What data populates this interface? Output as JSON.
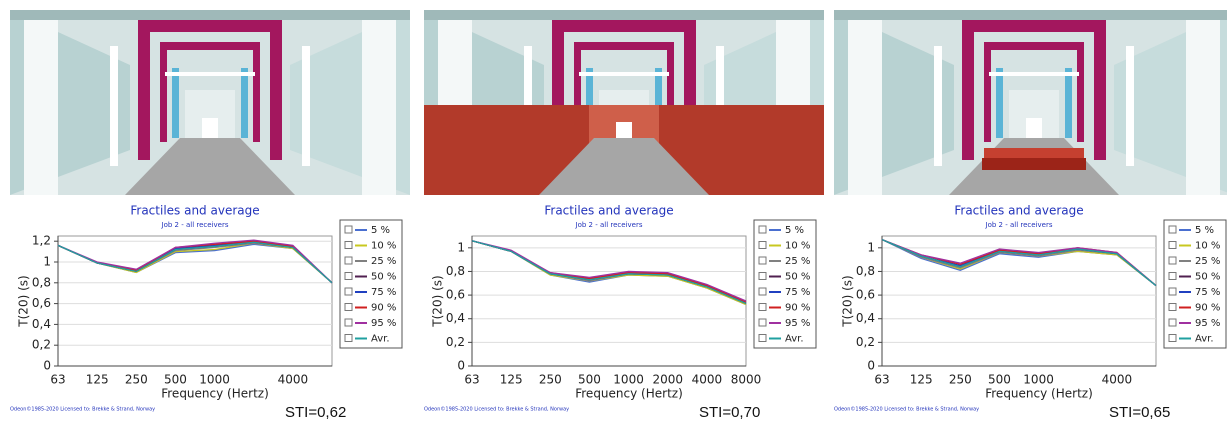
{
  "chart_data": [
    {
      "type": "line",
      "title": "Fractiles and average",
      "subtitle": "Job 2 - all receivers",
      "x_label": "Frequency (Hertz)",
      "y_label": "T(20) (s)",
      "annotation": "STI=0,62",
      "footer": "Odeon©1985-2020 Licensed to: Brekke & Strand, Norway",
      "categories": [
        "63",
        "125",
        "250",
        "500",
        "1000",
        null,
        "4000",
        null
      ],
      "ylim": [
        0,
        1.25
      ],
      "yticks": [
        0,
        {
          "value": 0.2,
          "label": "0,2"
        },
        {
          "value": 0.4,
          "label": "0,4"
        },
        {
          "value": 0.6,
          "label": "0,6"
        },
        {
          "value": 0.8,
          "label": "0,8"
        },
        1,
        {
          "value": 1.2,
          "label": "1,2"
        }
      ],
      "series": [
        {
          "name": "5 %",
          "color": "#4a6fd0",
          "values": [
            1.16,
            0.99,
            0.9,
            1.09,
            1.11,
            1.17,
            1.13,
            0.8
          ]
        },
        {
          "name": "10 %",
          "color": "#c8c820",
          "values": [
            1.16,
            0.99,
            0.9,
            1.1,
            1.12,
            1.18,
            1.13,
            0.8
          ]
        },
        {
          "name": "25 %",
          "color": "#808080",
          "values": [
            1.16,
            0.99,
            0.91,
            1.11,
            1.14,
            1.18,
            1.14,
            0.8
          ]
        },
        {
          "name": "50 %",
          "color": "#502050",
          "values": [
            1.16,
            0.99,
            0.91,
            1.12,
            1.15,
            1.19,
            1.14,
            0.8
          ]
        },
        {
          "name": "75 %",
          "color": "#2040c0",
          "values": [
            1.16,
            0.99,
            0.92,
            1.13,
            1.16,
            1.2,
            1.15,
            0.8
          ]
        },
        {
          "name": "90 %",
          "color": "#d02020",
          "values": [
            1.16,
            0.99,
            0.92,
            1.14,
            1.17,
            1.2,
            1.15,
            0.8
          ]
        },
        {
          "name": "95 %",
          "color": "#a030a0",
          "values": [
            1.16,
            1.0,
            0.93,
            1.14,
            1.18,
            1.21,
            1.16,
            0.8
          ]
        },
        {
          "name": "Avr.",
          "color": "#20a0a0",
          "values": [
            1.16,
            0.99,
            0.91,
            1.12,
            1.15,
            1.19,
            1.14,
            0.8
          ]
        }
      ]
    },
    {
      "type": "line",
      "title": "Fractiles and average",
      "subtitle": "Job 2 - all receivers",
      "x_label": "Frequency (Hertz)",
      "y_label": "T(20) (s)",
      "annotation": "STI=0,70",
      "footer": "Odeon©1985-2020 Licensed to: Brekke & Strand, Norway",
      "categories": [
        "63",
        "125",
        "250",
        "500",
        "1000",
        "2000",
        "4000",
        "8000"
      ],
      "ylim": [
        0,
        1.1
      ],
      "yticks": [
        0,
        {
          "value": 0.2,
          "label": "0,2"
        },
        {
          "value": 0.4,
          "label": "0,4"
        },
        {
          "value": 0.6,
          "label": "0,6"
        },
        {
          "value": 0.8,
          "label": "0,8"
        },
        1
      ],
      "series": [
        {
          "name": "5 %",
          "color": "#4a6fd0",
          "values": [
            1.06,
            0.97,
            0.77,
            0.71,
            0.77,
            0.76,
            0.66,
            0.52
          ]
        },
        {
          "name": "10 %",
          "color": "#c8c820",
          "values": [
            1.06,
            0.97,
            0.77,
            0.72,
            0.77,
            0.76,
            0.66,
            0.52
          ]
        },
        {
          "name": "25 %",
          "color": "#808080",
          "values": [
            1.06,
            0.97,
            0.78,
            0.72,
            0.78,
            0.77,
            0.67,
            0.53
          ]
        },
        {
          "name": "50 %",
          "color": "#502050",
          "values": [
            1.06,
            0.97,
            0.78,
            0.73,
            0.78,
            0.77,
            0.67,
            0.53
          ]
        },
        {
          "name": "75 %",
          "color": "#2040c0",
          "values": [
            1.06,
            0.97,
            0.78,
            0.74,
            0.79,
            0.78,
            0.68,
            0.54
          ]
        },
        {
          "name": "90 %",
          "color": "#d02020",
          "values": [
            1.06,
            0.97,
            0.79,
            0.74,
            0.79,
            0.78,
            0.68,
            0.54
          ]
        },
        {
          "name": "95 %",
          "color": "#a030a0",
          "values": [
            1.06,
            0.98,
            0.79,
            0.75,
            0.8,
            0.79,
            0.69,
            0.55
          ]
        },
        {
          "name": "Avr.",
          "color": "#20a0a0",
          "values": [
            1.06,
            0.97,
            0.78,
            0.73,
            0.78,
            0.77,
            0.67,
            0.53
          ]
        }
      ]
    },
    {
      "type": "line",
      "title": "Fractiles and average",
      "subtitle": "Job 2 - all receivers",
      "x_label": "Frequency (Hertz)",
      "y_label": "T(20) (s)",
      "annotation": "STI=0,65",
      "footer": "Odeon©1985-2020 Licensed to: Brekke & Strand, Norway",
      "categories": [
        "63",
        "125",
        "250",
        "500",
        "1000",
        null,
        "4000",
        null
      ],
      "ylim": [
        0,
        1.1
      ],
      "yticks": [
        0,
        {
          "value": 0.2,
          "label": "0,2"
        },
        {
          "value": 0.4,
          "label": "0,4"
        },
        {
          "value": 0.6,
          "label": "0,6"
        },
        {
          "value": 0.8,
          "label": "0,8"
        },
        1
      ],
      "series": [
        {
          "name": "5 %",
          "color": "#4a6fd0",
          "values": [
            1.07,
            0.91,
            0.81,
            0.95,
            0.92,
            0.97,
            0.94,
            0.68
          ]
        },
        {
          "name": "10 %",
          "color": "#c8c820",
          "values": [
            1.07,
            0.92,
            0.82,
            0.96,
            0.93,
            0.97,
            0.94,
            0.68
          ]
        },
        {
          "name": "25 %",
          "color": "#808080",
          "values": [
            1.07,
            0.92,
            0.83,
            0.96,
            0.93,
            0.98,
            0.95,
            0.68
          ]
        },
        {
          "name": "50 %",
          "color": "#502050",
          "values": [
            1.07,
            0.93,
            0.84,
            0.97,
            0.94,
            0.99,
            0.95,
            0.68
          ]
        },
        {
          "name": "75 %",
          "color": "#2040c0",
          "values": [
            1.07,
            0.93,
            0.85,
            0.98,
            0.95,
            0.99,
            0.95,
            0.68
          ]
        },
        {
          "name": "90 %",
          "color": "#d02020",
          "values": [
            1.07,
            0.94,
            0.86,
            0.98,
            0.95,
            1.0,
            0.96,
            0.68
          ]
        },
        {
          "name": "95 %",
          "color": "#a030a0",
          "values": [
            1.07,
            0.94,
            0.87,
            0.99,
            0.96,
            1.0,
            0.96,
            0.68
          ]
        },
        {
          "name": "Avr.",
          "color": "#20a0a0",
          "values": [
            1.07,
            0.93,
            0.84,
            0.97,
            0.94,
            0.99,
            0.95,
            0.68
          ]
        }
      ]
    }
  ]
}
